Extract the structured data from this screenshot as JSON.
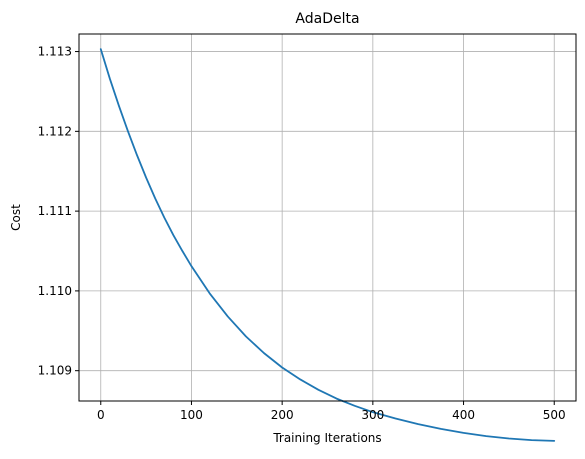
{
  "chart_data": {
    "type": "line",
    "title": "AdaDelta",
    "xlabel": "Training Iterations",
    "ylabel": "Cost",
    "xlim": [
      -24,
      524
    ],
    "ylim": [
      1.10862,
      1.11322
    ],
    "grid": true,
    "x_ticks": [
      0,
      100,
      200,
      300,
      400,
      500
    ],
    "x_tick_labels": [
      "0",
      "100",
      "200",
      "300",
      "400",
      "500"
    ],
    "y_ticks": [
      1.109,
      1.11,
      1.111,
      1.112,
      1.113
    ],
    "y_tick_labels": [
      "1.109",
      "1.110",
      "1.111",
      "1.112",
      "1.113"
    ],
    "series": [
      {
        "color": "#1f77b4",
        "x": [
          0,
          10,
          20,
          30,
          40,
          50,
          60,
          70,
          80,
          90,
          100,
          120,
          140,
          160,
          180,
          200,
          220,
          240,
          260,
          280,
          300,
          325,
          350,
          375,
          400,
          425,
          450,
          475,
          500
        ],
        "y": [
          1.11303,
          1.11266,
          1.11232,
          1.112,
          1.1117,
          1.11142,
          1.11116,
          1.11092,
          1.1107,
          1.1105,
          1.11031,
          1.10997,
          1.10968,
          1.10943,
          1.10922,
          1.10904,
          1.10889,
          1.10876,
          1.10865,
          1.10856,
          1.10848,
          1.1084,
          1.10833,
          1.10827,
          1.10822,
          1.10818,
          1.10815,
          1.10813,
          1.10812
        ]
      }
    ]
  }
}
